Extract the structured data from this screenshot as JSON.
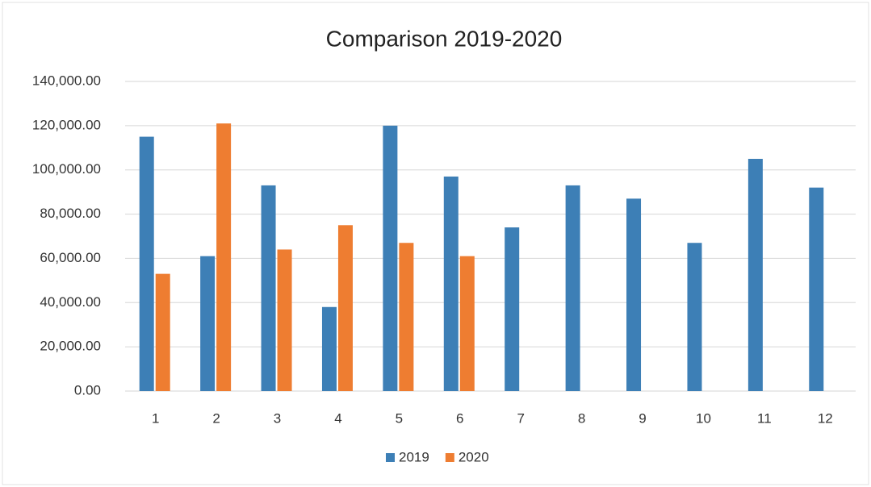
{
  "chart_data": {
    "type": "bar",
    "title": "Comparison 2019-2020",
    "categories": [
      "1",
      "2",
      "3",
      "4",
      "5",
      "6",
      "7",
      "8",
      "9",
      "10",
      "11",
      "12"
    ],
    "series": [
      {
        "name": "2019",
        "color": "#3d7fb6",
        "values": [
          115000,
          61000,
          93000,
          38000,
          120000,
          97000,
          74000,
          93000,
          87000,
          67000,
          105000,
          92000
        ]
      },
      {
        "name": "2020",
        "color": "#ee7d31",
        "values": [
          53000,
          121000,
          64000,
          75000,
          67000,
          61000,
          null,
          null,
          null,
          null,
          null,
          null
        ]
      }
    ],
    "ylim": [
      0,
      140000
    ],
    "yticks": [
      {
        "value": 0,
        "label": "0.00"
      },
      {
        "value": 20000,
        "label": "20,000.00"
      },
      {
        "value": 40000,
        "label": "40,000.00"
      },
      {
        "value": 60000,
        "label": "60,000.00"
      },
      {
        "value": 80000,
        "label": "80,000.00"
      },
      {
        "value": 100000,
        "label": "100,000.00"
      },
      {
        "value": 120000,
        "label": "120,000.00"
      },
      {
        "value": 140000,
        "label": "140,000.00"
      }
    ],
    "grid": true,
    "legend": "bottom"
  }
}
